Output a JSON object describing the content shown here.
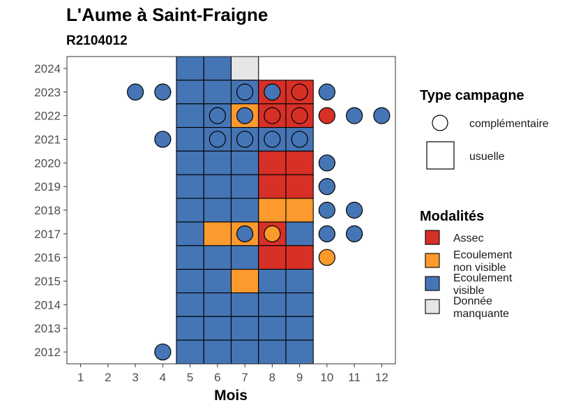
{
  "chart_data": {
    "type": "heatmap",
    "title": "L'Aume à Saint-Fraigne",
    "subtitle": "R2104012",
    "xlabel": "Mois",
    "ylabel": "",
    "x_ticks": [
      1,
      2,
      3,
      4,
      5,
      6,
      7,
      8,
      9,
      10,
      11,
      12
    ],
    "y_ticks": [
      2012,
      2013,
      2014,
      2015,
      2016,
      2017,
      2018,
      2019,
      2020,
      2021,
      2022,
      2023,
      2024
    ],
    "xlim": [
      0.5,
      12.5
    ],
    "ylim": [
      2011.5,
      2024.5
    ],
    "colors": {
      "Assec": "#d73027",
      "Ecoulement non visible": "#fd9a2d",
      "Ecoulement visible": "#4575b4",
      "Donnée manquante": "#e6e6e6"
    },
    "usuelle": [
      {
        "year": 2024,
        "values": {
          "5": "Ecoulement visible",
          "6": "Ecoulement visible",
          "7": "Donnée manquante"
        }
      },
      {
        "year": 2023,
        "values": {
          "5": "Ecoulement visible",
          "6": "Ecoulement visible",
          "7": "Ecoulement visible",
          "8": "Assec",
          "9": "Assec"
        }
      },
      {
        "year": 2022,
        "values": {
          "5": "Ecoulement visible",
          "6": "Ecoulement visible",
          "7": "Ecoulement non visible",
          "8": "Assec",
          "9": "Assec"
        }
      },
      {
        "year": 2021,
        "values": {
          "5": "Ecoulement visible",
          "6": "Ecoulement visible",
          "7": "Ecoulement visible",
          "8": "Ecoulement visible",
          "9": "Ecoulement visible"
        }
      },
      {
        "year": 2020,
        "values": {
          "5": "Ecoulement visible",
          "6": "Ecoulement visible",
          "7": "Ecoulement visible",
          "8": "Assec",
          "9": "Assec"
        }
      },
      {
        "year": 2019,
        "values": {
          "5": "Ecoulement visible",
          "6": "Ecoulement visible",
          "7": "Ecoulement visible",
          "8": "Assec",
          "9": "Assec"
        }
      },
      {
        "year": 2018,
        "values": {
          "5": "Ecoulement visible",
          "6": "Ecoulement visible",
          "7": "Ecoulement visible",
          "8": "Ecoulement non visible",
          "9": "Ecoulement non visible"
        }
      },
      {
        "year": 2017,
        "values": {
          "5": "Ecoulement visible",
          "6": "Ecoulement non visible",
          "7": "Ecoulement non visible",
          "8": "Assec",
          "9": "Ecoulement visible"
        }
      },
      {
        "year": 2016,
        "values": {
          "5": "Ecoulement visible",
          "6": "Ecoulement visible",
          "7": "Ecoulement visible",
          "8": "Assec",
          "9": "Assec"
        }
      },
      {
        "year": 2015,
        "values": {
          "5": "Ecoulement visible",
          "6": "Ecoulement visible",
          "7": "Ecoulement non visible",
          "8": "Ecoulement visible",
          "9": "Ecoulement visible"
        }
      },
      {
        "year": 2014,
        "values": {
          "5": "Ecoulement visible",
          "6": "Ecoulement visible",
          "7": "Ecoulement visible",
          "8": "Ecoulement visible",
          "9": "Ecoulement visible"
        }
      },
      {
        "year": 2013,
        "values": {
          "5": "Ecoulement visible",
          "6": "Ecoulement visible",
          "7": "Ecoulement visible",
          "8": "Ecoulement visible",
          "9": "Ecoulement visible"
        }
      },
      {
        "year": 2012,
        "values": {
          "5": "Ecoulement visible",
          "6": "Ecoulement visible",
          "7": "Ecoulement visible",
          "8": "Ecoulement visible",
          "9": "Ecoulement visible"
        }
      }
    ],
    "complementaire": [
      {
        "year": 2023,
        "month": 3,
        "value": "Ecoulement visible"
      },
      {
        "year": 2023,
        "month": 4,
        "value": "Ecoulement visible"
      },
      {
        "year": 2023,
        "month": 7,
        "value": "Ecoulement visible"
      },
      {
        "year": 2023,
        "month": 8,
        "value": "Ecoulement visible"
      },
      {
        "year": 2023,
        "month": 9,
        "value": "Assec"
      },
      {
        "year": 2023,
        "month": 10,
        "value": "Ecoulement visible"
      },
      {
        "year": 2022,
        "month": 6,
        "value": "Ecoulement visible"
      },
      {
        "year": 2022,
        "month": 7,
        "value": "Ecoulement visible"
      },
      {
        "year": 2022,
        "month": 8,
        "value": "Assec"
      },
      {
        "year": 2022,
        "month": 9,
        "value": "Assec"
      },
      {
        "year": 2022,
        "month": 10,
        "value": "Assec"
      },
      {
        "year": 2022,
        "month": 11,
        "value": "Ecoulement visible"
      },
      {
        "year": 2022,
        "month": 12,
        "value": "Ecoulement visible"
      },
      {
        "year": 2021,
        "month": 4,
        "value": "Ecoulement visible"
      },
      {
        "year": 2021,
        "month": 6,
        "value": "Ecoulement visible"
      },
      {
        "year": 2021,
        "month": 7,
        "value": "Ecoulement visible"
      },
      {
        "year": 2021,
        "month": 8,
        "value": "Ecoulement visible"
      },
      {
        "year": 2021,
        "month": 9,
        "value": "Ecoulement visible"
      },
      {
        "year": 2020,
        "month": 10,
        "value": "Ecoulement visible"
      },
      {
        "year": 2019,
        "month": 10,
        "value": "Ecoulement visible"
      },
      {
        "year": 2018,
        "month": 10,
        "value": "Ecoulement visible"
      },
      {
        "year": 2018,
        "month": 11,
        "value": "Ecoulement visible"
      },
      {
        "year": 2017,
        "month": 7,
        "value": "Ecoulement visible"
      },
      {
        "year": 2017,
        "month": 8,
        "value": "Ecoulement non visible"
      },
      {
        "year": 2017,
        "month": 10,
        "value": "Ecoulement visible"
      },
      {
        "year": 2017,
        "month": 11,
        "value": "Ecoulement visible"
      },
      {
        "year": 2016,
        "month": 10,
        "value": "Ecoulement non visible"
      },
      {
        "year": 2012,
        "month": 4,
        "value": "Ecoulement visible"
      }
    ],
    "legend_shape": {
      "title": "Type campagne",
      "items": [
        "complémentaire",
        "usuelle"
      ]
    },
    "legend_color": {
      "title": "Modalités",
      "items": [
        {
          "key": "Assec",
          "lines": [
            "Assec"
          ]
        },
        {
          "key": "Ecoulement non visible",
          "lines": [
            "Ecoulement",
            "non visible"
          ]
        },
        {
          "key": "Ecoulement visible",
          "lines": [
            "Ecoulement",
            "visible"
          ]
        },
        {
          "key": "Donnée manquante",
          "lines": [
            "Donnée",
            "manquante"
          ]
        }
      ]
    },
    "legend_placement": "right",
    "grid": false
  }
}
